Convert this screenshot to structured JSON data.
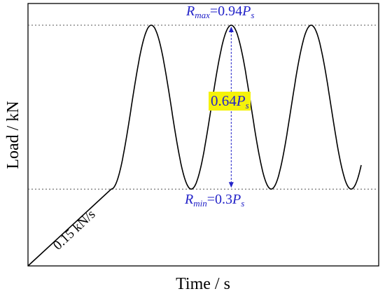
{
  "chart_data": {
    "type": "line",
    "title": "",
    "xlabel": "Time / s",
    "ylabel": "Load / kN",
    "grid": false,
    "legend": "none",
    "axis_ticks": false,
    "ylim": [
      0,
      1.0
    ],
    "xlim": [
      0,
      1.0
    ],
    "units": "fraction of axis range (axes are unlabeled)",
    "series": [
      {
        "ramp": {
          "x": [
            0.0,
            0.25
          ],
          "y": [
            0.0,
            0.3
          ]
        },
        "cyclic": {
          "type": "sinusoid",
          "start_x": 0.25,
          "end_x": 1.0,
          "period": 0.24,
          "min": 0.3,
          "max": 0.94,
          "cycles_visible": 3.1
        }
      }
    ],
    "reference_lines": [
      {
        "y": 0.94,
        "style": "dotted"
      },
      {
        "y": 0.3,
        "style": "dotted"
      }
    ],
    "annotations": {
      "ramp_rate": "0.15 kN/s",
      "rmax": {
        "sym": "R",
        "sub": "max",
        "eq": "=0.94",
        "p": "P",
        "psub": "s"
      },
      "rmin": {
        "sym": "R",
        "sub": "min",
        "eq": "=0.3",
        "p": "P",
        "psub": "s"
      },
      "amplitude": {
        "num": "0.64",
        "p": "P",
        "psub": "s"
      }
    },
    "colors": {
      "curve": "#000000",
      "annotation": "#2323c8",
      "highlight": "#f5f20a",
      "reference_line": "#555555"
    }
  }
}
